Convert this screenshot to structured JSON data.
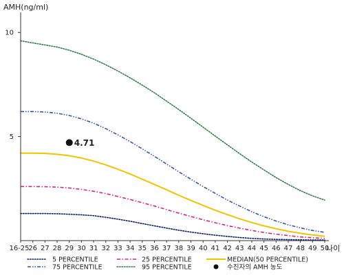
{
  "chart_data": {
    "type": "line",
    "ylabel": "AMH(ng/ml)",
    "xlabel": "나이",
    "x_ticks": [
      "16-25",
      "26",
      "27",
      "28",
      "29",
      "30",
      "31",
      "32",
      "33",
      "34",
      "35",
      "36",
      "37",
      "38",
      "39",
      "40",
      "41",
      "42",
      "43",
      "44",
      "45",
      "46",
      "47",
      "48",
      "49",
      "50"
    ],
    "y_ticks": [
      5,
      10
    ],
    "ylim": [
      0,
      10.9
    ],
    "series": [
      {
        "name": "5 PERCENTILE",
        "color": "#0b1e6b",
        "dash": "dotted",
        "values": [
          1.3,
          1.3,
          1.3,
          1.29,
          1.27,
          1.24,
          1.2,
          1.12,
          1.03,
          0.93,
          0.82,
          0.71,
          0.6,
          0.5,
          0.41,
          0.33,
          0.26,
          0.2,
          0.15,
          0.11,
          0.08,
          0.06,
          0.05,
          0.04,
          0.03,
          0.03
        ]
      },
      {
        "name": "25 PERCENTILE",
        "color": "#e0207d",
        "dash": "dashdot",
        "values": [
          2.6,
          2.6,
          2.59,
          2.57,
          2.53,
          2.46,
          2.37,
          2.26,
          2.12,
          1.98,
          1.82,
          1.66,
          1.49,
          1.32,
          1.16,
          1.0,
          0.86,
          0.72,
          0.6,
          0.49,
          0.39,
          0.31,
          0.24,
          0.18,
          0.14,
          0.11
        ]
      },
      {
        "name": "MEDIAN(50 PERCENTILE)",
        "color": "#f2c400",
        "dash": "solid",
        "values": [
          4.2,
          4.2,
          4.19,
          4.15,
          4.08,
          3.97,
          3.82,
          3.64,
          3.43,
          3.2,
          2.95,
          2.7,
          2.44,
          2.18,
          1.93,
          1.69,
          1.46,
          1.25,
          1.05,
          0.87,
          0.71,
          0.57,
          0.45,
          0.35,
          0.27,
          0.21
        ]
      },
      {
        "name": "75 PERCENTILE",
        "color": "#2f56b8",
        "dash": "dashdotdot",
        "values": [
          6.2,
          6.2,
          6.18,
          6.12,
          6.01,
          5.85,
          5.64,
          5.38,
          5.08,
          4.76,
          4.41,
          4.05,
          3.68,
          3.31,
          2.95,
          2.6,
          2.27,
          1.95,
          1.66,
          1.39,
          1.15,
          0.94,
          0.76,
          0.61,
          0.49,
          0.4
        ]
      },
      {
        "name": "95 PERCENTILE",
        "color": "#2e7d4a",
        "dash": "dotted",
        "values": [
          9.6,
          9.5,
          9.4,
          9.3,
          9.15,
          8.95,
          8.72,
          8.45,
          8.15,
          7.82,
          7.47,
          7.1,
          6.7,
          6.3,
          5.88,
          5.45,
          5.02,
          4.6,
          4.18,
          3.78,
          3.4,
          3.03,
          2.7,
          2.4,
          2.15,
          1.95
        ]
      }
    ],
    "marker": {
      "name": "수진자의 AMH 농도",
      "x_index": 4,
      "value": 4.71,
      "label": "4.71",
      "color": "#111111"
    },
    "legend_position": "bottom"
  }
}
